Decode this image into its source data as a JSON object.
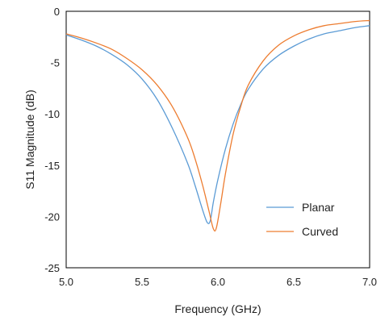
{
  "chart_data": {
    "type": "line",
    "title": "",
    "xlabel": "Frequency (GHz)",
    "ylabel": "S11 Magnitude (dB)",
    "xlim": [
      5.0,
      7.0
    ],
    "ylim": [
      -25,
      0
    ],
    "x_ticks": [
      "5.0",
      "5.5",
      "6.0",
      "6.5",
      "7.0"
    ],
    "y_ticks": [
      "0",
      "-5",
      "-10",
      "-15",
      "-20",
      "-25"
    ],
    "grid": false,
    "legend_position": "bottom-right",
    "series": [
      {
        "name": "Planar",
        "color": "#5b9bd5",
        "points": [
          [
            5.0,
            -2.3
          ],
          [
            5.1,
            -2.8
          ],
          [
            5.2,
            -3.4
          ],
          [
            5.3,
            -4.2
          ],
          [
            5.4,
            -5.2
          ],
          [
            5.5,
            -6.6
          ],
          [
            5.6,
            -8.6
          ],
          [
            5.7,
            -11.4
          ],
          [
            5.8,
            -14.8
          ],
          [
            5.85,
            -17.0
          ],
          [
            5.9,
            -19.4
          ],
          [
            5.93,
            -20.6
          ],
          [
            5.95,
            -20.4
          ],
          [
            5.97,
            -18.6
          ],
          [
            6.0,
            -16.4
          ],
          [
            6.05,
            -13.4
          ],
          [
            6.1,
            -11.0
          ],
          [
            6.15,
            -9.1
          ],
          [
            6.2,
            -7.6
          ],
          [
            6.3,
            -5.6
          ],
          [
            6.4,
            -4.3
          ],
          [
            6.5,
            -3.4
          ],
          [
            6.6,
            -2.7
          ],
          [
            6.7,
            -2.2
          ],
          [
            6.8,
            -1.9
          ],
          [
            6.9,
            -1.6
          ],
          [
            7.0,
            -1.4
          ]
        ]
      },
      {
        "name": "Curved",
        "color": "#ed7d31",
        "points": [
          [
            5.0,
            -2.2
          ],
          [
            5.1,
            -2.6
          ],
          [
            5.2,
            -3.1
          ],
          [
            5.3,
            -3.7
          ],
          [
            5.4,
            -4.6
          ],
          [
            5.5,
            -5.7
          ],
          [
            5.6,
            -7.2
          ],
          [
            5.7,
            -9.3
          ],
          [
            5.8,
            -12.3
          ],
          [
            5.85,
            -14.4
          ],
          [
            5.9,
            -17.0
          ],
          [
            5.94,
            -19.4
          ],
          [
            5.97,
            -21.2
          ],
          [
            5.99,
            -21.1
          ],
          [
            6.02,
            -18.6
          ],
          [
            6.05,
            -15.8
          ],
          [
            6.1,
            -12.0
          ],
          [
            6.15,
            -9.3
          ],
          [
            6.2,
            -7.2
          ],
          [
            6.3,
            -4.8
          ],
          [
            6.4,
            -3.3
          ],
          [
            6.5,
            -2.4
          ],
          [
            6.6,
            -1.8
          ],
          [
            6.7,
            -1.4
          ],
          [
            6.8,
            -1.2
          ],
          [
            6.9,
            -1.0
          ],
          [
            7.0,
            -0.9
          ]
        ]
      }
    ]
  }
}
